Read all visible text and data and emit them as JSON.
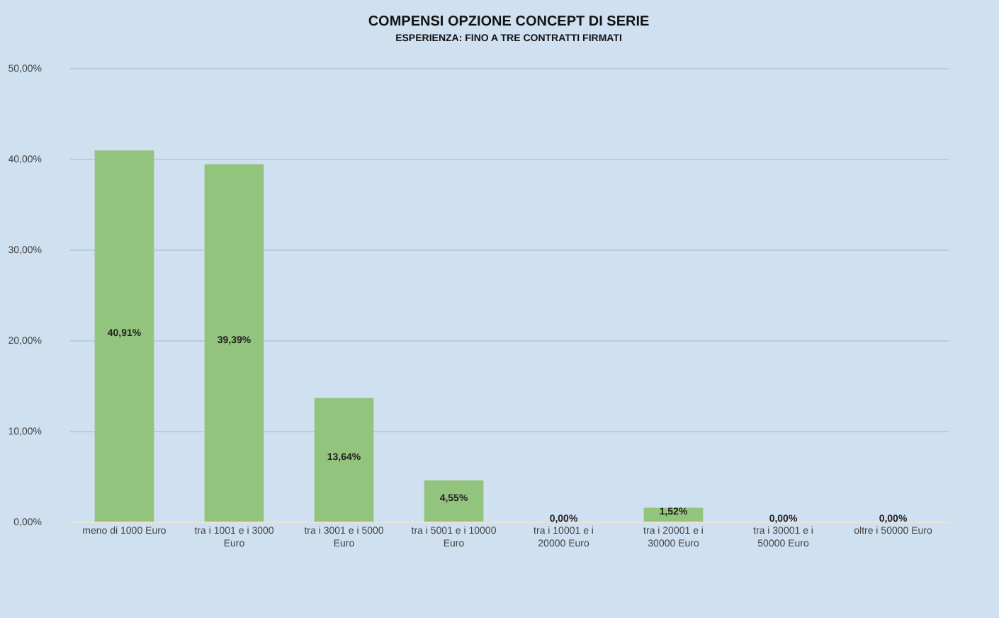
{
  "chart_data": {
    "type": "bar",
    "title": "COMPENSI OPZIONE CONCEPT DI SERIE",
    "subtitle": "ESPERIENZA: FINO A TRE CONTRATTI FIRMATI",
    "categories": [
      "meno di 1000 Euro",
      "tra i 1001 e i 3000 Euro",
      "tra i 3001 e i 5000 Euro",
      "tra i 5001 e i 10000 Euro",
      "tra i 10001 e i 20000 Euro",
      "tra i 20001 e i 30000 Euro",
      "tra i 30001 e i 50000 Euro",
      "oltre i 50000 Euro"
    ],
    "values": [
      40.91,
      39.39,
      13.64,
      4.55,
      0,
      1.52,
      0,
      0
    ],
    "value_labels": [
      "40,91%",
      "39,39%",
      "13,64%",
      "4,55%",
      "0,00%",
      "1,52%",
      "0,00%",
      "0,00%"
    ],
    "color": "#93c47d",
    "ylim": [
      0,
      50
    ],
    "yticks": [
      {
        "value": 0,
        "label": "0,00%"
      },
      {
        "value": 10,
        "label": "10,00%"
      },
      {
        "value": 20,
        "label": "20,00%"
      },
      {
        "value": 30,
        "label": "30,00%"
      },
      {
        "value": 40,
        "label": "40,00%"
      },
      {
        "value": 50,
        "label": "50,00%"
      }
    ],
    "grid": "y"
  }
}
